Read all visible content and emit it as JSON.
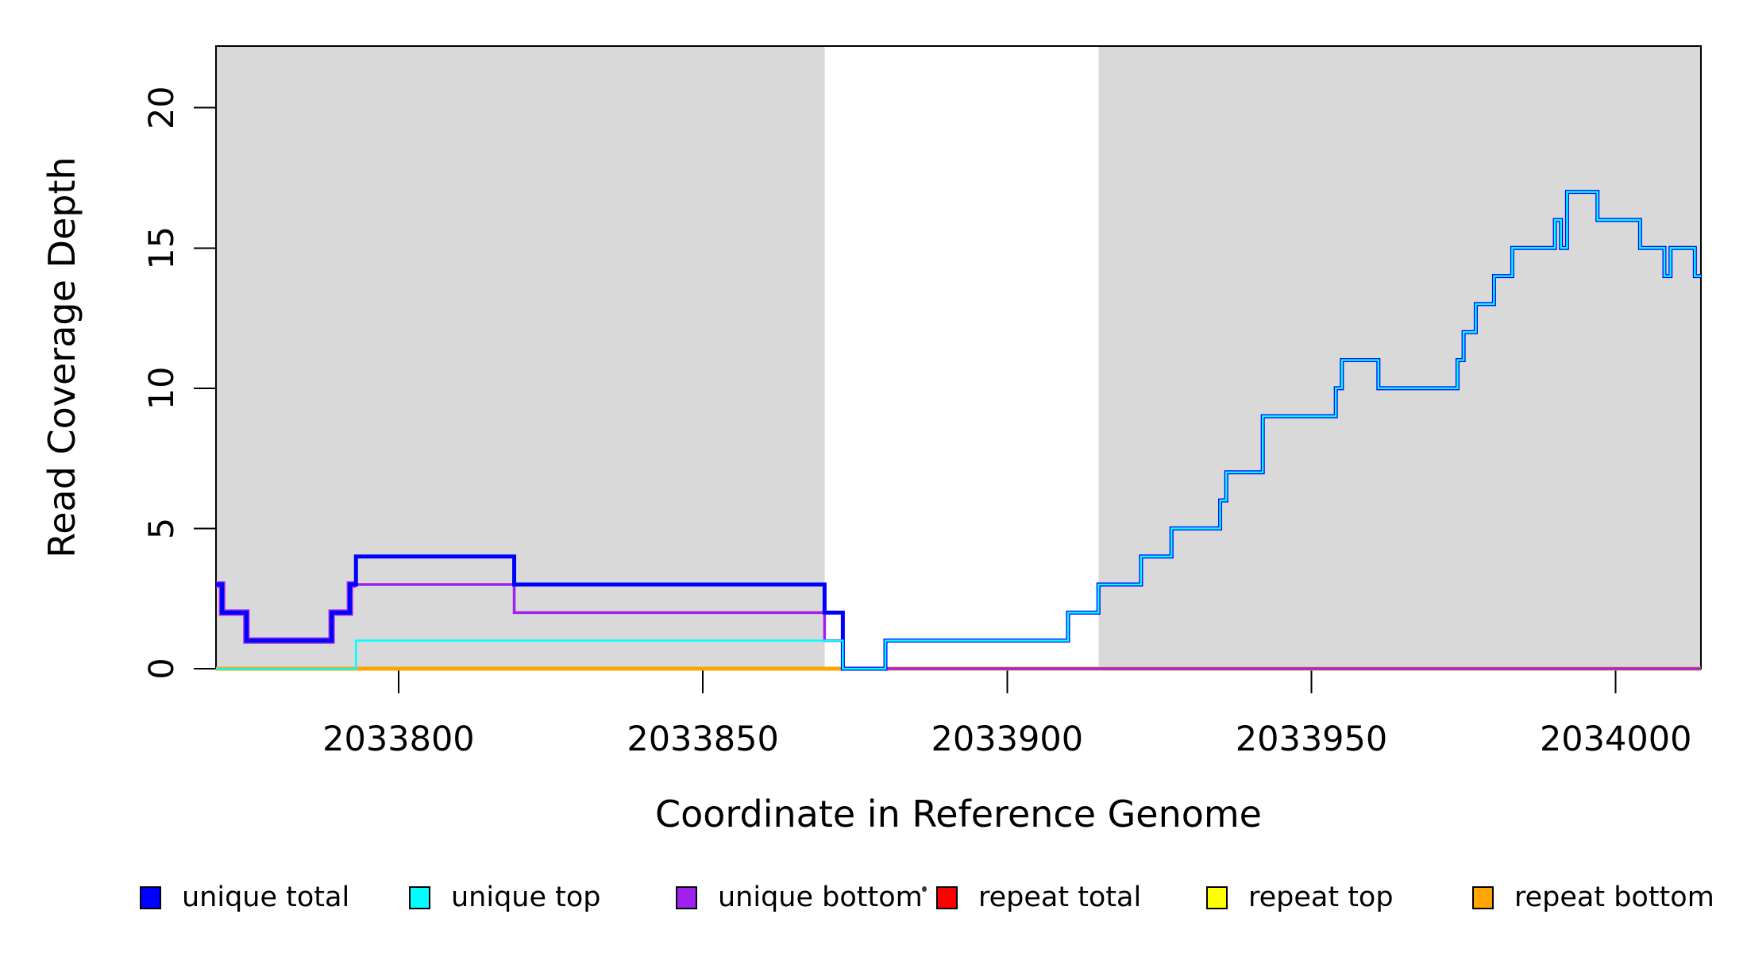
{
  "figure": {
    "x_title": "Coordinate in Reference Genome",
    "y_title": "Read Coverage Depth",
    "background": "#FFFFFF",
    "shaded_region_color": "#D9D9D9",
    "box_color": "#000000",
    "tick_color": "#000000"
  },
  "legend": {
    "items": [
      {
        "label": "unique total",
        "color": "#0000FF"
      },
      {
        "label": "unique top",
        "color": "#00FFFF"
      },
      {
        "label": "unique bottom",
        "color": "#A020F0"
      },
      {
        "label": "repeat total",
        "color": "#FF0000"
      },
      {
        "label": "repeat top",
        "color": "#FFFF00"
      },
      {
        "label": "repeat bottom",
        "color": "#FFA500"
      }
    ]
  },
  "chart_data": {
    "type": "line",
    "subtype": "step-after",
    "title": "",
    "xlabel": "Coordinate in Reference Genome",
    "ylabel": "Read Coverage Depth",
    "xlim": [
      2033770,
      2034014
    ],
    "ylim": [
      0,
      22.2
    ],
    "x_ticks": [
      2033800,
      2033850,
      2033900,
      2033950,
      2034000
    ],
    "y_ticks": [
      0,
      5,
      10,
      15,
      20
    ],
    "grid": false,
    "legend_position": "bottom",
    "shaded_regions": [
      {
        "x0": 2033770,
        "x1": 2033870
      },
      {
        "x0": 2033915,
        "x1": 2034014
      }
    ],
    "series": [
      {
        "name": "unique total",
        "color": "#0000FF",
        "steps": [
          [
            2033770,
            3
          ],
          [
            2033771,
            2
          ],
          [
            2033775,
            1
          ],
          [
            2033789,
            2
          ],
          [
            2033792,
            3
          ],
          [
            2033793,
            4
          ],
          [
            2033819,
            3
          ],
          [
            2033870,
            2
          ],
          [
            2033873,
            0
          ],
          [
            2033880,
            1
          ],
          [
            2033910,
            2
          ],
          [
            2033915,
            3
          ],
          [
            2033922,
            4
          ],
          [
            2033927,
            5
          ],
          [
            2033935,
            6
          ],
          [
            2033936,
            7
          ],
          [
            2033942,
            9
          ],
          [
            2033954,
            10
          ],
          [
            2033955,
            11
          ],
          [
            2033961,
            10
          ],
          [
            2033974,
            11
          ],
          [
            2033975,
            12
          ],
          [
            2033977,
            13
          ],
          [
            2033980,
            14
          ],
          [
            2033983,
            15
          ],
          [
            2033990,
            16
          ],
          [
            2033991,
            15
          ],
          [
            2033992,
            17
          ],
          [
            2033997,
            16
          ],
          [
            2034004,
            15
          ],
          [
            2034008,
            14
          ],
          [
            2034009,
            15
          ],
          [
            2034013,
            14
          ]
        ]
      },
      {
        "name": "unique top",
        "color": "#00FFFF",
        "steps": [
          [
            2033770,
            0
          ],
          [
            2033793,
            1
          ],
          [
            2033873,
            0
          ],
          [
            2033880,
            1
          ],
          [
            2033910,
            2
          ],
          [
            2033915,
            3
          ],
          [
            2033922,
            4
          ],
          [
            2033927,
            5
          ],
          [
            2033935,
            6
          ],
          [
            2033936,
            7
          ],
          [
            2033942,
            9
          ],
          [
            2033954,
            10
          ],
          [
            2033955,
            11
          ],
          [
            2033961,
            10
          ],
          [
            2033974,
            11
          ],
          [
            2033975,
            12
          ],
          [
            2033977,
            13
          ],
          [
            2033980,
            14
          ],
          [
            2033983,
            15
          ],
          [
            2033990,
            16
          ],
          [
            2033991,
            15
          ],
          [
            2033992,
            17
          ],
          [
            2033997,
            16
          ],
          [
            2034004,
            15
          ],
          [
            2034008,
            14
          ],
          [
            2034009,
            15
          ],
          [
            2034013,
            14
          ]
        ]
      },
      {
        "name": "unique bottom",
        "color": "#A020F0",
        "steps": [
          [
            2033770,
            3
          ],
          [
            2033771,
            2
          ],
          [
            2033775,
            1
          ],
          [
            2033789,
            2
          ],
          [
            2033792,
            3
          ],
          [
            2033819,
            2
          ],
          [
            2033870,
            1
          ],
          [
            2033873,
            0
          ]
        ]
      },
      {
        "name": "repeat total",
        "color": "#FF0000",
        "steps": [
          [
            2033770,
            0
          ]
        ]
      },
      {
        "name": "repeat top",
        "color": "#FFFF00",
        "steps": [
          [
            2033770,
            0
          ]
        ]
      },
      {
        "name": "repeat bottom",
        "color": "#FFA500",
        "steps": [
          [
            2033770,
            0
          ]
        ]
      }
    ]
  }
}
